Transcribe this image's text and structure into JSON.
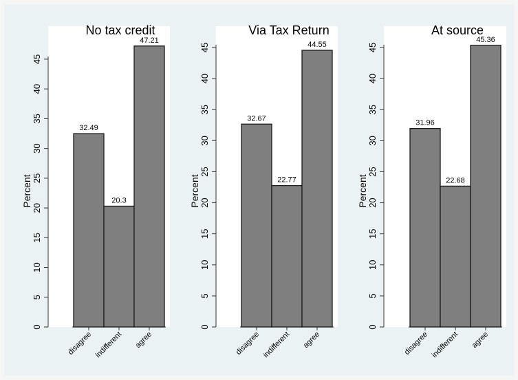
{
  "colors": {
    "page_background": "#f5f5f5",
    "figure_background": "#eaf2f3",
    "plot_background": "#ffffff",
    "bar_fill": "#7f7f7f",
    "bar_stroke": "#1a1a1a",
    "axis": "#333333",
    "text": "#000000"
  },
  "chart_data": [
    {
      "type": "bar",
      "title": "No tax credit",
      "ylabel": "Percent",
      "xlabel": "",
      "categories": [
        "disagree",
        "indifferent",
        "agree"
      ],
      "values": [
        32.49,
        20.3,
        47.21
      ],
      "value_labels": [
        "32.49",
        "20.3",
        "47.21"
      ],
      "ylim": [
        0,
        48
      ],
      "yticks": [
        0,
        5,
        10,
        15,
        20,
        25,
        30,
        35,
        40,
        45
      ],
      "grid": false
    },
    {
      "type": "bar",
      "title": "Via Tax Return",
      "ylabel": "Percent",
      "xlabel": "",
      "categories": [
        "disagree",
        "indifferent",
        "agree"
      ],
      "values": [
        32.67,
        22.77,
        44.55
      ],
      "value_labels": [
        "32.67",
        "22.77",
        "44.55"
      ],
      "ylim": [
        0,
        46
      ],
      "yticks": [
        0,
        5,
        10,
        15,
        20,
        25,
        30,
        35,
        40,
        45
      ],
      "grid": false
    },
    {
      "type": "bar",
      "title": "At source",
      "ylabel": "Percent",
      "xlabel": "",
      "categories": [
        "disagree",
        "indifferent",
        "agree"
      ],
      "values": [
        31.96,
        22.68,
        45.36
      ],
      "value_labels": [
        "31.96",
        "22.68",
        "45.36"
      ],
      "ylim": [
        0,
        46
      ],
      "yticks": [
        0,
        5,
        10,
        15,
        20,
        25,
        30,
        35,
        40,
        45
      ],
      "grid": false
    }
  ]
}
